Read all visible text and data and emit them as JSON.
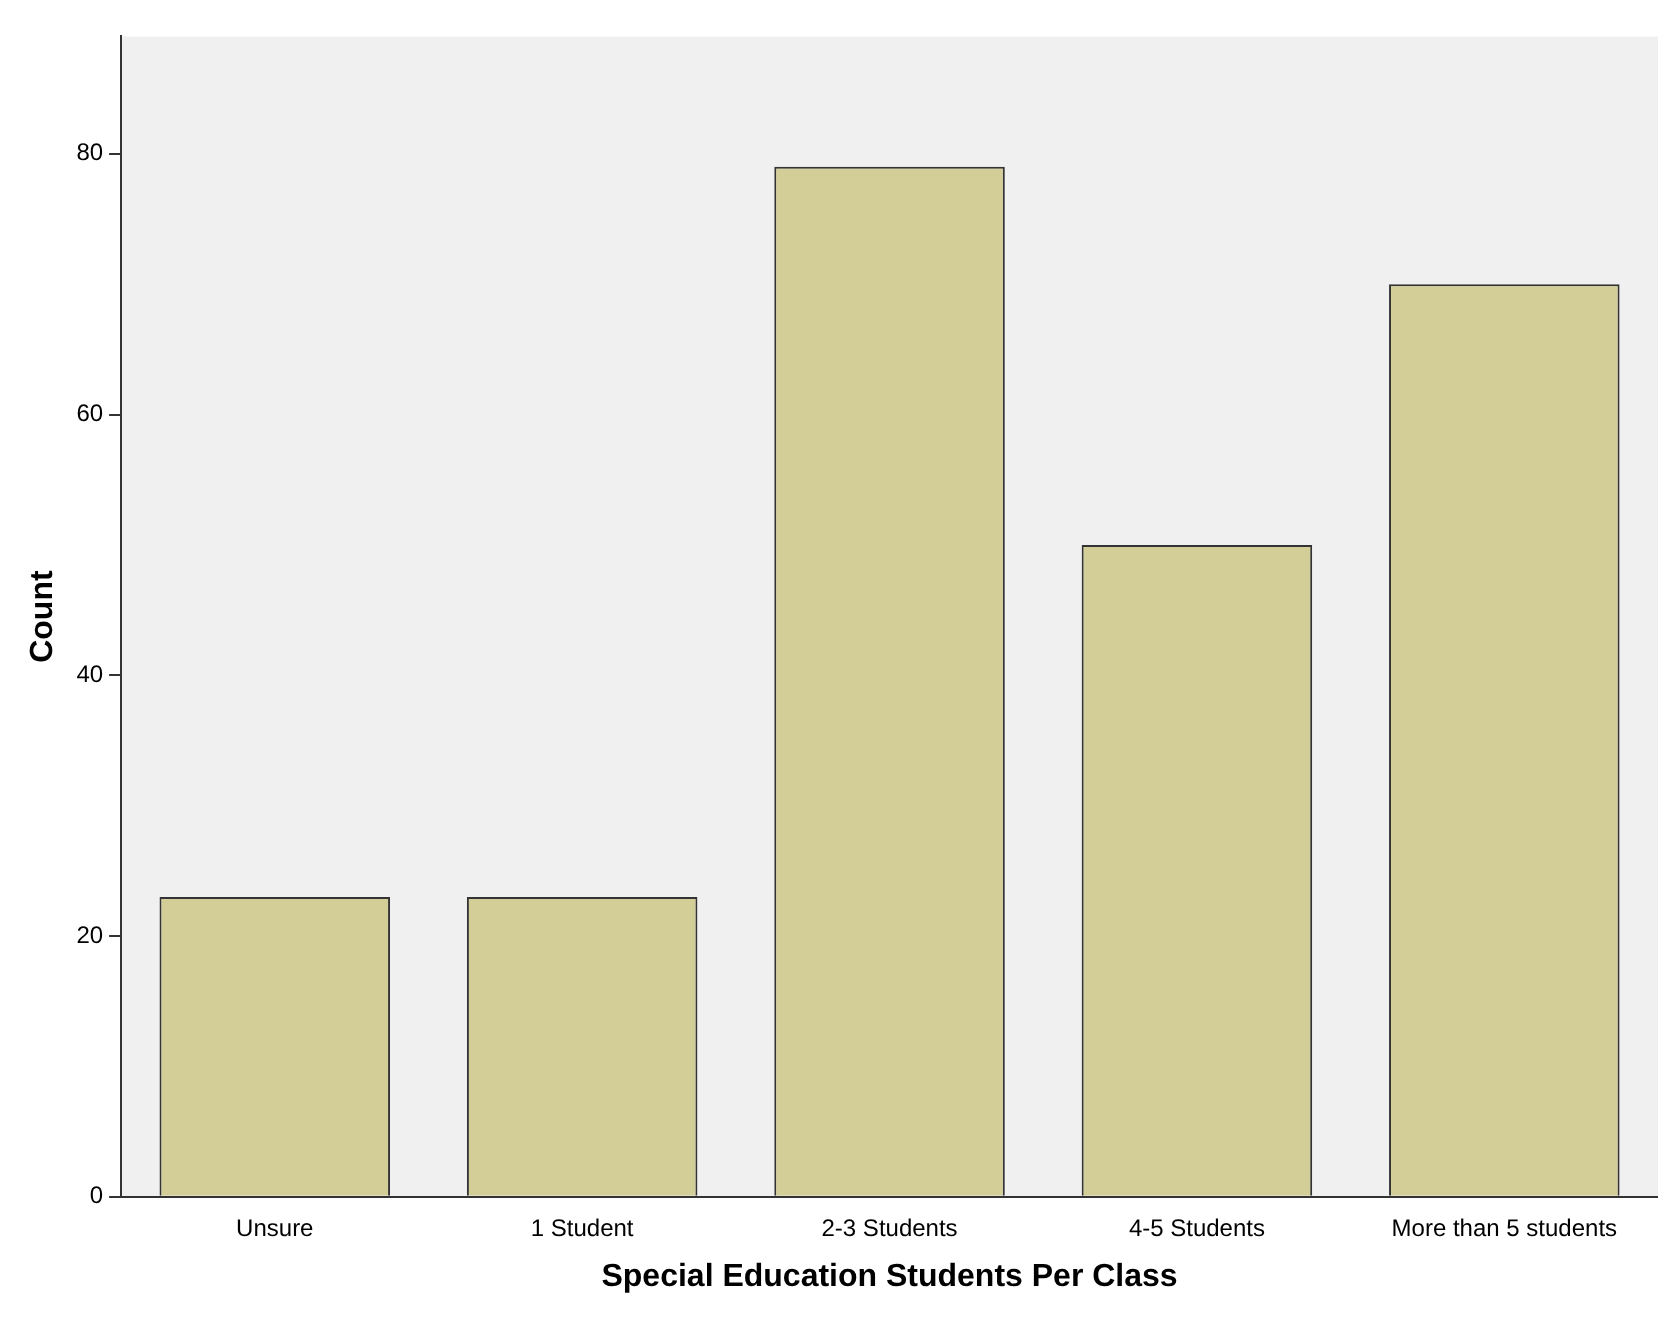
{
  "chart_data": {
    "type": "bar",
    "xlabel": "Special Education Students Per Class",
    "ylabel": "Count",
    "categories": [
      "Unsure",
      "1 Student",
      "2-3 Students",
      "4-5 Students",
      "More than 5 students"
    ],
    "values": [
      23,
      23,
      79,
      50,
      70
    ],
    "color": "#d3ce97",
    "ylim": [
      0,
      89
    ],
    "yticks": [
      0,
      20,
      40,
      60,
      80
    ],
    "grid": false,
    "legend": false
  }
}
